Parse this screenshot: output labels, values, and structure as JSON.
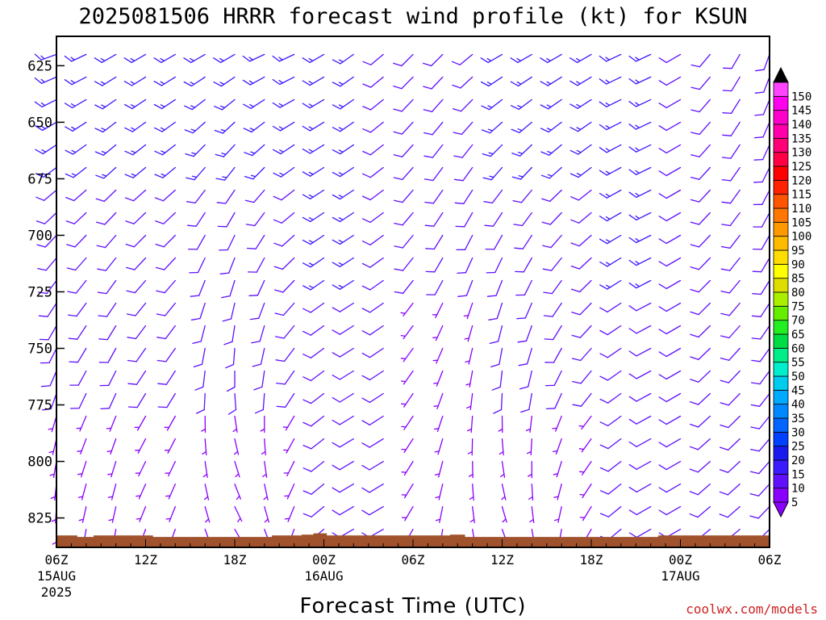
{
  "title": "2025081506 HRRR forecast wind profile (kt) for KSUN",
  "credit": "coolwx.com/models",
  "chart_data": {
    "type": "wind-barb-profile",
    "title": "2025081506 HRRR forecast wind profile (kt) for KSUN",
    "xlabel": "Forecast Time (UTC)",
    "ylabel": "",
    "x_range_hours": [
      0,
      48
    ],
    "x_ticks": [
      {
        "hour": 0,
        "label": "06Z",
        "date": "15AUG",
        "year": "2025"
      },
      {
        "hour": 6,
        "label": "12Z",
        "date": "",
        "year": ""
      },
      {
        "hour": 12,
        "label": "18Z",
        "date": "",
        "year": ""
      },
      {
        "hour": 18,
        "label": "00Z",
        "date": "16AUG",
        "year": ""
      },
      {
        "hour": 24,
        "label": "06Z",
        "date": "",
        "year": ""
      },
      {
        "hour": 30,
        "label": "12Z",
        "date": "",
        "year": ""
      },
      {
        "hour": 36,
        "label": "18Z",
        "date": "",
        "year": ""
      },
      {
        "hour": 42,
        "label": "00Z",
        "date": "17AUG",
        "year": ""
      },
      {
        "hour": 48,
        "label": "06Z",
        "date": "",
        "year": ""
      }
    ],
    "y_range_hpa": [
      612,
      838
    ],
    "y_ticks": [
      625,
      650,
      675,
      700,
      725,
      750,
      775,
      800,
      825
    ],
    "levels_hpa": [
      620,
      630,
      640,
      650,
      660,
      670,
      680,
      690,
      700,
      710,
      720,
      730,
      740,
      750,
      760,
      770,
      780,
      790,
      800,
      810,
      820,
      830
    ],
    "colorbar": {
      "levels": [
        5,
        10,
        15,
        20,
        25,
        30,
        35,
        40,
        45,
        50,
        55,
        60,
        65,
        70,
        75,
        80,
        85,
        90,
        95,
        100,
        105,
        110,
        115,
        120,
        125,
        130,
        135,
        140,
        145,
        150
      ],
      "colors": [
        "#8a00ff",
        "#6010ff",
        "#3a1aff",
        "#1a1aee",
        "#0040ff",
        "#0066ff",
        "#0088ff",
        "#00aaff",
        "#00ccee",
        "#00eecc",
        "#00ee88",
        "#00dd44",
        "#22ee22",
        "#66ee00",
        "#aaee00",
        "#dddd00",
        "#ffff00",
        "#ffdd00",
        "#ffbb00",
        "#ff9900",
        "#ff7700",
        "#ff5500",
        "#ff2200",
        "#ff0000",
        "#ff0044",
        "#ff0077",
        "#ff00aa",
        "#ff00cc",
        "#ff00ee",
        "#ff44ff"
      ]
    },
    "terrain": [
      {
        "hour": 0.0,
        "hpa": 832.7
      },
      {
        "hour": 1.4,
        "hpa": 832.7
      },
      {
        "hour": 1.4,
        "hpa": 833.4
      },
      {
        "hour": 2.5,
        "hpa": 833.4
      },
      {
        "hour": 2.5,
        "hpa": 832.7
      },
      {
        "hour": 6.5,
        "hpa": 832.7
      },
      {
        "hour": 6.5,
        "hpa": 833.4
      },
      {
        "hour": 14.5,
        "hpa": 833.4
      },
      {
        "hour": 14.5,
        "hpa": 832.7
      },
      {
        "hour": 16.5,
        "hpa": 832.7
      },
      {
        "hour": 16.5,
        "hpa": 832.4
      },
      {
        "hour": 17.3,
        "hpa": 832.4
      },
      {
        "hour": 17.3,
        "hpa": 831.8
      },
      {
        "hour": 18.2,
        "hpa": 831.8
      },
      {
        "hour": 18.2,
        "hpa": 832.7
      },
      {
        "hour": 26.5,
        "hpa": 832.7
      },
      {
        "hour": 26.5,
        "hpa": 832.4
      },
      {
        "hour": 27.5,
        "hpa": 832.4
      },
      {
        "hour": 27.5,
        "hpa": 833.4
      },
      {
        "hour": 40.5,
        "hpa": 833.4
      },
      {
        "hour": 40.5,
        "hpa": 832.7
      },
      {
        "hour": 48.0,
        "hpa": 832.7
      }
    ],
    "wind_model": {
      "note": "Wind barbs on a 2-hour by 10-hPa grid; each column lists speeds (kt) and directions (deg) from 620 hPa down to 830 hPa",
      "hours": [
        0,
        2,
        4,
        6,
        8,
        10,
        12,
        14,
        16,
        18,
        20,
        22,
        24,
        26,
        28,
        30,
        32,
        34,
        36,
        38,
        40,
        42,
        44,
        46,
        48
      ],
      "upper_speed": [
        15,
        15,
        15,
        15,
        15,
        15,
        15,
        15,
        15,
        15,
        15,
        10,
        10,
        10,
        10,
        15,
        15,
        15,
        15,
        15,
        15,
        10,
        10,
        10,
        10
      ],
      "upper_dir": [
        250,
        245,
        240,
        240,
        240,
        240,
        240,
        245,
        245,
        240,
        235,
        230,
        225,
        225,
        230,
        240,
        240,
        240,
        240,
        245,
        245,
        240,
        220,
        210,
        200
      ],
      "lower_speed": [
        5,
        5,
        5,
        5,
        5,
        5,
        5,
        5,
        5,
        10,
        10,
        10,
        5,
        5,
        5,
        5,
        5,
        5,
        5,
        10,
        10,
        10,
        10,
        10,
        10
      ],
      "lower_dir": [
        180,
        190,
        190,
        200,
        200,
        160,
        150,
        160,
        200,
        230,
        240,
        240,
        210,
        190,
        170,
        160,
        170,
        190,
        210,
        230,
        240,
        240,
        230,
        230,
        225
      ]
    }
  }
}
